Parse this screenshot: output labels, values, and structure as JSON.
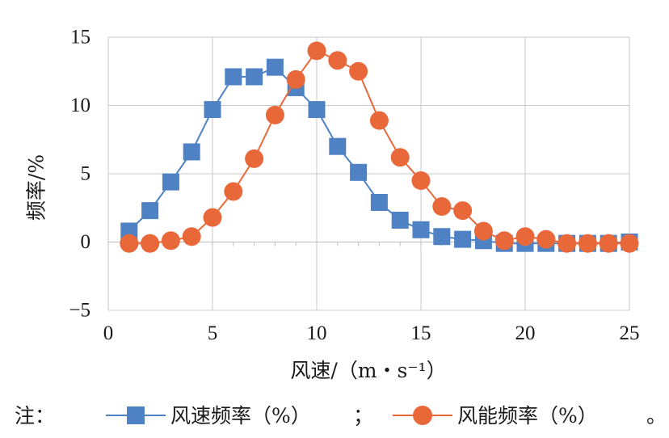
{
  "chart_data": {
    "type": "line",
    "title": "",
    "xlabel": "风速/（m・s⁻¹）",
    "ylabel": "频率/%",
    "xlim": [
      0,
      25
    ],
    "ylim": [
      -5,
      15
    ],
    "x_ticks": [
      "0",
      "5",
      "10",
      "15",
      "20",
      "25"
    ],
    "y_ticks": [
      "15",
      "10",
      "5",
      "0",
      "−5"
    ],
    "grid": true,
    "legend_position": "bottom",
    "legend_prefix": "注：",
    "legend_separator": "；",
    "legend_end": "。",
    "series": [
      {
        "name": "风速频率（%）",
        "marker": "square",
        "color": "#4e82c4",
        "x": [
          1,
          2,
          3,
          4,
          5,
          6,
          7,
          8,
          9,
          10,
          11,
          12,
          13,
          14,
          15,
          16,
          17,
          18,
          19,
          20,
          21,
          22,
          23,
          24,
          25
        ],
        "values": [
          0.8,
          2.3,
          4.4,
          6.6,
          9.7,
          12.1,
          12.1,
          12.8,
          11.3,
          9.7,
          7.0,
          5.1,
          2.9,
          1.6,
          0.9,
          0.4,
          0.2,
          0.1,
          -0.1,
          -0.1,
          -0.1,
          -0.1,
          -0.1,
          -0.1,
          0.0
        ]
      },
      {
        "name": "风能频率（%）",
        "marker": "circle",
        "color": "#e8683a",
        "x": [
          1,
          2,
          3,
          4,
          5,
          6,
          7,
          8,
          9,
          10,
          11,
          12,
          13,
          14,
          15,
          16,
          17,
          18,
          19,
          20,
          21,
          22,
          23,
          24,
          25
        ],
        "values": [
          -0.1,
          -0.1,
          0.1,
          0.4,
          1.8,
          3.7,
          6.1,
          9.3,
          11.9,
          14.0,
          13.3,
          12.5,
          8.9,
          6.2,
          4.5,
          2.6,
          2.3,
          0.8,
          0.1,
          0.4,
          0.2,
          -0.1,
          -0.1,
          -0.1,
          -0.1
        ]
      }
    ]
  }
}
